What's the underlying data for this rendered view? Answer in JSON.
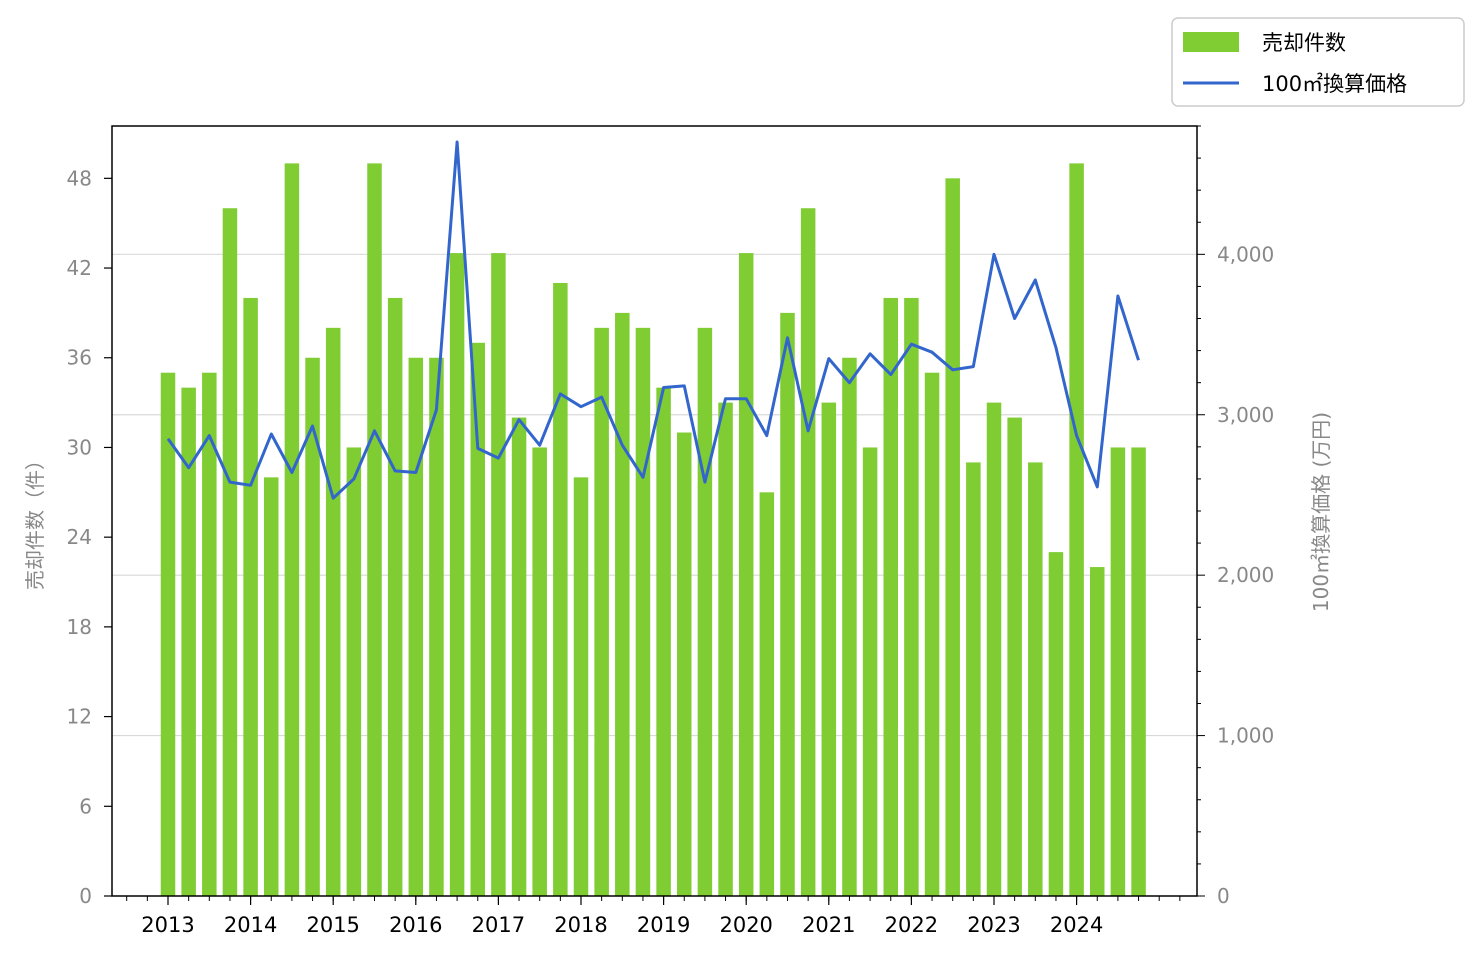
{
  "chart_data": {
    "type": "bar",
    "x_ticks": [
      "2013",
      "2014",
      "2015",
      "2016",
      "2017",
      "2018",
      "2019",
      "2020",
      "2021",
      "2022",
      "2023",
      "2024"
    ],
    "ylabel_left": "売却件数（件）",
    "ylabel_right": "100㎡換算価格 (万円)",
    "y_left_ticks": [
      "0",
      "6",
      "12",
      "18",
      "24",
      "30",
      "36",
      "42",
      "48"
    ],
    "y_right_ticks": [
      "0",
      "1,000",
      "2,000",
      "3,000",
      "4,000"
    ],
    "ylim_left": [
      0,
      51.5
    ],
    "ylim_right": [
      0,
      4800
    ],
    "grid": "horizontal at right-axis major ticks",
    "legend_position": "top-right, outside plot",
    "colors": {
      "bars": "#7fcc33",
      "line": "#3366cc",
      "tick_text": "#888888"
    },
    "series": [
      {
        "name": "売却件数",
        "type": "bar",
        "axis": "left",
        "values": [
          35,
          34,
          35,
          46,
          40,
          28,
          49,
          36,
          38,
          30,
          49,
          40,
          36,
          36,
          43,
          37,
          43,
          32,
          30,
          41,
          28,
          38,
          39,
          38,
          34,
          31,
          38,
          33,
          43,
          27,
          39,
          46,
          33,
          36,
          30,
          40,
          40,
          35,
          48,
          29,
          33,
          32,
          29,
          23,
          49,
          22,
          30,
          30
        ]
      },
      {
        "name": "100㎡換算価格",
        "type": "line",
        "axis": "right",
        "values": [
          2850,
          2670,
          2870,
          2580,
          2560,
          2880,
          2640,
          2930,
          2480,
          2600,
          2900,
          2650,
          2640,
          3030,
          4700,
          2790,
          2730,
          2970,
          2810,
          3130,
          3050,
          3110,
          2810,
          2610,
          3170,
          3180,
          2580,
          3100,
          3100,
          2870,
          3480,
          2900,
          3350,
          3200,
          3380,
          3250,
          3440,
          3390,
          3280,
          3300,
          4000,
          3600,
          3840,
          3420,
          2870,
          2550,
          3740,
          3340
        ]
      }
    ]
  }
}
